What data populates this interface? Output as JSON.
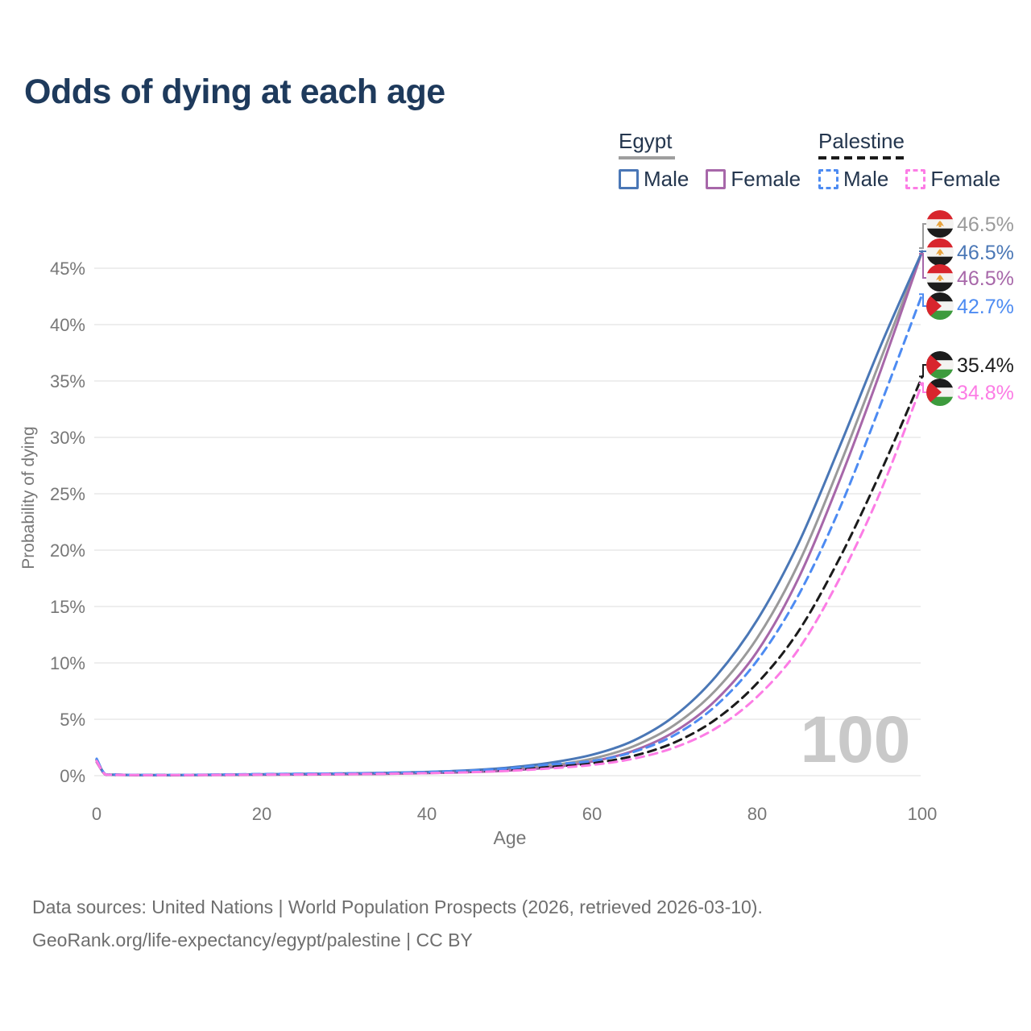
{
  "title": "Odds of dying at each age",
  "legend": {
    "groups": [
      {
        "name": "Egypt",
        "line_style": "solid",
        "line_color": "#9e9e9e",
        "items": [
          {
            "label": "Male",
            "color": "#4a77b6"
          },
          {
            "label": "Female",
            "color": "#a767a9"
          }
        ]
      },
      {
        "name": "Palestine",
        "line_style": "dashed",
        "line_color": "#1b1b1b",
        "items": [
          {
            "label": "Male",
            "color": "#4d8bf2"
          },
          {
            "label": "Female",
            "color": "#fc7ce5"
          }
        ]
      }
    ]
  },
  "watermark_age": "100",
  "footer": {
    "line1": "Data sources: United Nations | World Population Prospects (2026, retrieved 2026-03-10).",
    "line2": "GeoRank.org/life-expectancy/egypt/palestine | CC BY"
  },
  "chart_data": {
    "type": "line",
    "title": "Odds of dying at each age",
    "xlabel": "Age",
    "ylabel": "Probability of dying",
    "xlim": [
      0,
      100
    ],
    "ylim_pct": [
      0,
      48
    ],
    "grid": "horizontal",
    "legend_position": "top-right",
    "x_tick_values": [
      0,
      20,
      40,
      60,
      80,
      100
    ],
    "x_tick_labels": [
      "0",
      "20",
      "40",
      "60",
      "80",
      "100"
    ],
    "y_tick_values": [
      0,
      5,
      10,
      15,
      20,
      25,
      30,
      35,
      40,
      45
    ],
    "y_tick_labels": [
      "0%",
      "5%",
      "10%",
      "15%",
      "20%",
      "25%",
      "30%",
      "35%",
      "40%",
      "45%"
    ],
    "ages": [
      0,
      1,
      2,
      5,
      10,
      15,
      20,
      25,
      30,
      35,
      40,
      45,
      50,
      55,
      60,
      65,
      70,
      75,
      80,
      85,
      90,
      95,
      100
    ],
    "series": [
      {
        "name": "Egypt Both sexes",
        "country": "egypt",
        "sex": "both",
        "dashed": false,
        "color": "#9a9a9a",
        "end_label": "46.5%",
        "values_pct": [
          1.3,
          0.12,
          0.08,
          0.05,
          0.05,
          0.07,
          0.1,
          0.12,
          0.15,
          0.19,
          0.26,
          0.37,
          0.56,
          0.9,
          1.5,
          2.6,
          4.5,
          7.6,
          12.2,
          18.8,
          27.5,
          37.0,
          46.5
        ]
      },
      {
        "name": "Egypt Male",
        "country": "egypt",
        "sex": "male",
        "dashed": false,
        "color": "#4a77b6",
        "end_label": "46.5%",
        "values_pct": [
          1.4,
          0.13,
          0.09,
          0.06,
          0.06,
          0.09,
          0.13,
          0.16,
          0.2,
          0.25,
          0.33,
          0.47,
          0.72,
          1.15,
          1.85,
          3.1,
          5.3,
          8.8,
          13.8,
          20.6,
          29.2,
          38.2,
          46.5
        ]
      },
      {
        "name": "Egypt Female",
        "country": "egypt",
        "sex": "female",
        "dashed": false,
        "color": "#a767a9",
        "end_label": "46.5%",
        "values_pct": [
          1.2,
          0.11,
          0.07,
          0.05,
          0.04,
          0.06,
          0.08,
          0.1,
          0.12,
          0.16,
          0.22,
          0.31,
          0.46,
          0.73,
          1.25,
          2.2,
          3.9,
          6.7,
          11.0,
          17.5,
          26.2,
          36.0,
          46.5
        ]
      },
      {
        "name": "Palestine Male",
        "country": "palestine",
        "sex": "male",
        "dashed": true,
        "color": "#4d8bf2",
        "end_label": "42.7%",
        "values_pct": [
          1.5,
          0.14,
          0.1,
          0.07,
          0.07,
          0.1,
          0.14,
          0.17,
          0.2,
          0.25,
          0.32,
          0.44,
          0.65,
          1.0,
          1.3,
          2.1,
          3.6,
          6.2,
          10.2,
          16.0,
          23.7,
          33.0,
          42.7
        ]
      },
      {
        "name": "Palestine Both sexes",
        "country": "palestine",
        "sex": "both",
        "dashed": true,
        "color": "#1b1b1b",
        "end_label": "35.4%",
        "values_pct": [
          1.4,
          0.13,
          0.09,
          0.06,
          0.06,
          0.08,
          0.11,
          0.13,
          0.16,
          0.2,
          0.26,
          0.35,
          0.5,
          0.78,
          1.1,
          1.75,
          2.95,
          5.0,
          8.2,
          12.8,
          19.3,
          27.0,
          35.4
        ]
      },
      {
        "name": "Palestine Female",
        "country": "palestine",
        "sex": "female",
        "dashed": true,
        "color": "#fc7ce5",
        "end_label": "34.8%",
        "values_pct": [
          1.3,
          0.12,
          0.08,
          0.05,
          0.05,
          0.07,
          0.09,
          0.11,
          0.13,
          0.17,
          0.22,
          0.3,
          0.43,
          0.65,
          0.95,
          1.5,
          2.5,
          4.2,
          7.0,
          11.2,
          17.5,
          25.3,
          34.8
        ]
      }
    ]
  }
}
